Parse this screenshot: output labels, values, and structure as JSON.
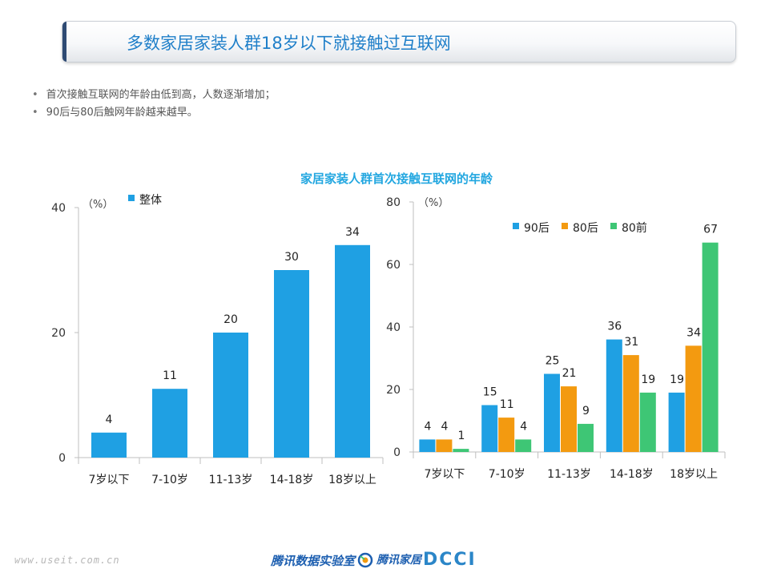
{
  "header": {
    "title": "多数家居家装人群18岁以下就接触过互联网"
  },
  "bullets": [
    "首次接触互联网的年龄由低到高，人数逐渐增加；",
    "90后与80后触网年龄越来越早。"
  ],
  "chart_title": "家居家装人群首次接触互联网的年龄",
  "footer": {
    "url": "www.useit.com.cn",
    "lab": "腾讯数据实验室",
    "home": "腾讯家居",
    "dcci": "DCCI"
  },
  "colors": {
    "blue": "#1fa0e3",
    "orange": "#f39a10",
    "green": "#3ec675",
    "title": "#23a7e0"
  },
  "chart_data": [
    {
      "type": "bar",
      "unit_label": "（%）",
      "categories": [
        "7岁以下",
        "7-10岁",
        "11-13岁",
        "14-18岁",
        "18岁以上"
      ],
      "series": [
        {
          "name": "整体",
          "values": [
            4,
            11,
            20,
            30,
            34
          ],
          "color": "#1fa0e3"
        }
      ],
      "ylim": [
        0,
        40
      ],
      "yticks": [
        0,
        20,
        40
      ],
      "legend": "top-left"
    },
    {
      "type": "bar",
      "unit_label": "（%）",
      "categories": [
        "7岁以下",
        "7-10岁",
        "11-13岁",
        "14-18岁",
        "18岁以上"
      ],
      "series": [
        {
          "name": "90后",
          "values": [
            4,
            15,
            25,
            36,
            19
          ],
          "color": "#1fa0e3"
        },
        {
          "name": "80后",
          "values": [
            4,
            11,
            21,
            31,
            34
          ],
          "color": "#f39a10"
        },
        {
          "name": "80前",
          "values": [
            1,
            4,
            9,
            19,
            67
          ],
          "color": "#3ec675"
        }
      ],
      "ylim": [
        0,
        80
      ],
      "yticks": [
        0,
        20,
        40,
        60,
        80
      ],
      "legend": "top"
    }
  ]
}
